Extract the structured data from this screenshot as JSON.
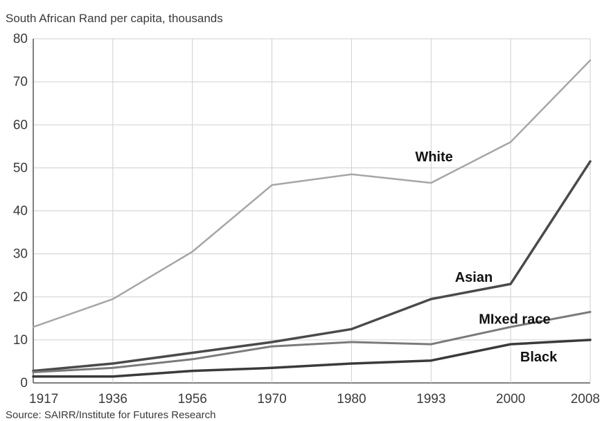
{
  "chart_data": {
    "type": "line",
    "title": "South African Rand per capita, thousands",
    "source": "Source: SAIRR/Institute for Futures Research",
    "x": [
      "1917",
      "1936",
      "1956",
      "1970",
      "1980",
      "1993",
      "2000",
      "2008"
    ],
    "yticks": [
      "0",
      "10",
      "20",
      "30",
      "40",
      "50",
      "60",
      "70",
      "80"
    ],
    "ylim": [
      0,
      80
    ],
    "grid": true,
    "series": [
      {
        "name": "White",
        "color": "#a6a6a6",
        "values": [
          13,
          19.5,
          30.5,
          46,
          48.5,
          46.5,
          56,
          75
        ]
      },
      {
        "name": "Asian",
        "color": "#4a4a4a",
        "values": [
          2.8,
          4.5,
          7,
          9.5,
          12.5,
          19.5,
          23,
          51.5
        ]
      },
      {
        "name": "MIxed race",
        "color": "#7a7a7a",
        "values": [
          2.5,
          3.5,
          5.5,
          8.5,
          9.5,
          9,
          13,
          16.5
        ]
      },
      {
        "name": "Black",
        "color": "#3a3a3a",
        "values": [
          1.5,
          1.5,
          2.8,
          3.5,
          4.5,
          5.2,
          9,
          10
        ]
      }
    ]
  }
}
